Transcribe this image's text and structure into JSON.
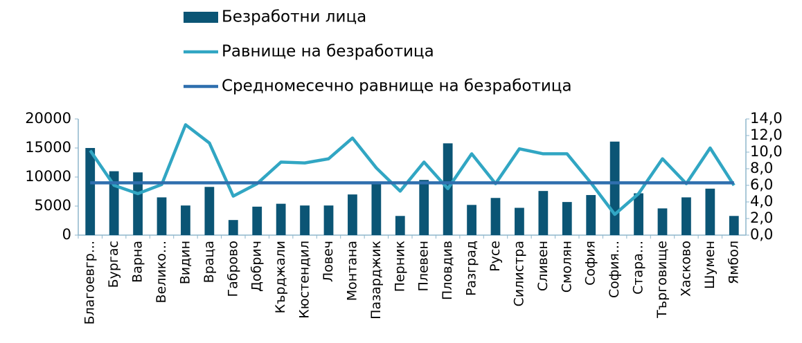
{
  "chart_data": {
    "type": "bar_line",
    "categories": [
      "Благоевгр...",
      "Бургас",
      "Варна",
      "Велико...",
      "Видин",
      "Враца",
      "Габрово",
      "Добрич",
      "Кърджали",
      "Кюстендил",
      "Ловеч",
      "Монтана",
      "Пазарджик",
      "Перник",
      "Плевен",
      "Пловдив",
      "Разград",
      "Русе",
      "Силистра",
      "Сливен",
      "Смолян",
      "София",
      "София...",
      "Стара...",
      "Търговище",
      "Хасково",
      "Шумен",
      "Ямбол"
    ],
    "series": [
      {
        "name": "Безработни лица",
        "type": "bar",
        "color": "#0b5575",
        "values": [
          15000,
          11000,
          10800,
          6500,
          5100,
          8300,
          2600,
          4900,
          5400,
          5100,
          5100,
          7000,
          8900,
          3300,
          9500,
          15800,
          5200,
          6400,
          4700,
          7600,
          5700,
          6900,
          16100,
          7200,
          4600,
          6500,
          8000,
          3300
        ]
      },
      {
        "name": "Равнище на безработица",
        "type": "line",
        "axis": "y2",
        "color": "#31a6c3",
        "values": [
          10.2,
          6.0,
          5.0,
          6.1,
          13.3,
          11.1,
          4.7,
          6.2,
          8.8,
          8.7,
          9.2,
          11.7,
          8.1,
          5.3,
          8.8,
          5.6,
          9.8,
          6.2,
          10.4,
          9.8,
          9.8,
          6.3,
          2.5,
          5.0,
          9.2,
          6.2,
          10.5,
          6.0
        ]
      },
      {
        "name": "Средномесечно равнище на безработица",
        "type": "line",
        "axis": "y2",
        "color": "#2f6fae",
        "values": [
          6.3,
          6.3,
          6.3,
          6.3,
          6.3,
          6.3,
          6.3,
          6.3,
          6.3,
          6.3,
          6.3,
          6.3,
          6.3,
          6.3,
          6.3,
          6.3,
          6.3,
          6.3,
          6.3,
          6.3,
          6.3,
          6.3,
          6.3,
          6.3,
          6.3,
          6.3,
          6.3,
          6.3
        ]
      }
    ],
    "ylim": [
      0,
      20000
    ],
    "yticks": [
      0,
      5000,
      10000,
      15000,
      20000
    ],
    "y2lim": [
      0,
      14
    ],
    "y2ticks": [
      {
        "value": 0,
        "label": "0,0"
      },
      {
        "value": 2,
        "label": "2,0"
      },
      {
        "value": 4,
        "label": "4,0"
      },
      {
        "value": 6,
        "label": "6,0"
      },
      {
        "value": 8,
        "label": "8,0"
      },
      {
        "value": 10,
        "label": "10,0"
      },
      {
        "value": 12,
        "label": "12,0"
      },
      {
        "value": 14,
        "label": "14,0"
      }
    ],
    "legend": "top"
  }
}
